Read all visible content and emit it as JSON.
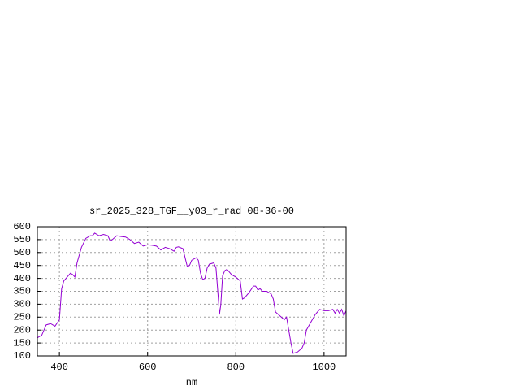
{
  "chart_data": {
    "type": "line",
    "title": "sr_2025_328_TGF__y03_r_rad 08-36-00",
    "x_label": "nm",
    "x": [
      350,
      360,
      370,
      380,
      390,
      400,
      405,
      410,
      420,
      425,
      430,
      435,
      440,
      450,
      460,
      470,
      475,
      480,
      490,
      500,
      510,
      515,
      520,
      530,
      540,
      550,
      560,
      570,
      580,
      590,
      600,
      610,
      620,
      630,
      640,
      650,
      660,
      665,
      670,
      680,
      690,
      695,
      700,
      710,
      715,
      720,
      725,
      730,
      735,
      740,
      750,
      755,
      760,
      763,
      766,
      770,
      775,
      780,
      790,
      800,
      810,
      815,
      820,
      830,
      840,
      845,
      850,
      855,
      860,
      870,
      880,
      885,
      890,
      900,
      910,
      915,
      920,
      925,
      930,
      940,
      950,
      955,
      960,
      970,
      980,
      990,
      1000,
      1010,
      1020,
      1025,
      1030,
      1035,
      1040,
      1045,
      1050
    ],
    "series": [
      {
        "color": "#9400d3",
        "values": [
          170,
          180,
          220,
          225,
          215,
          240,
          360,
          390,
          410,
          420,
          415,
          405,
          460,
          520,
          555,
          565,
          565,
          575,
          565,
          570,
          565,
          545,
          550,
          565,
          562,
          560,
          550,
          535,
          540,
          525,
          530,
          528,
          525,
          510,
          520,
          515,
          505,
          520,
          522,
          515,
          445,
          450,
          470,
          480,
          470,
          420,
          395,
          400,
          440,
          455,
          460,
          440,
          330,
          260,
          300,
          410,
          430,
          435,
          415,
          405,
          390,
          320,
          325,
          345,
          370,
          370,
          355,
          360,
          350,
          350,
          340,
          320,
          270,
          255,
          240,
          250,
          200,
          150,
          110,
          115,
          130,
          150,
          200,
          230,
          260,
          280,
          275,
          275,
          280,
          265,
          280,
          265,
          280,
          255,
          275
        ]
      }
    ],
    "xlim": [
      350,
      1050
    ],
    "ylim": [
      100,
      600
    ],
    "xticks": [
      400,
      600,
      800,
      1000
    ],
    "yticks": [
      100,
      150,
      200,
      250,
      300,
      350,
      400,
      450,
      500,
      550,
      600
    ],
    "grid": true
  }
}
